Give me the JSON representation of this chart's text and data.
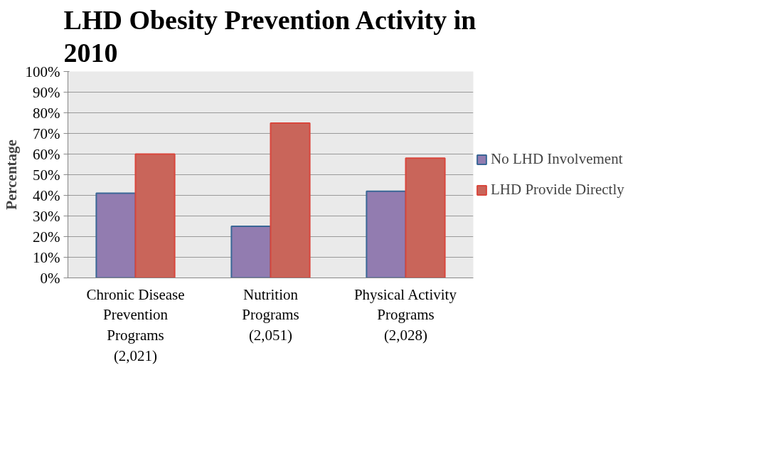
{
  "chart_data": {
    "type": "bar",
    "title": "LHD Obesity Prevention Activity in\n2010",
    "ylabel": "Percentage",
    "categories": [
      "Chronic Disease\nPrevention\nPrograms\n(2,021)",
      "Nutrition\nPrograms\n(2,051)",
      "Physical Activity\nPrograms\n(2,028)"
    ],
    "series": [
      {
        "name": "No LHD Involvement",
        "color": "#927cb0",
        "values": [
          41,
          25,
          42
        ]
      },
      {
        "name": "LHD Provide Directly",
        "color": "#c9655a",
        "values": [
          60,
          75,
          58
        ]
      }
    ],
    "ylim": [
      0,
      100
    ],
    "yticks": [
      {
        "value": 0,
        "label": "0%"
      },
      {
        "value": 10,
        "label": "10%"
      },
      {
        "value": 20,
        "label": "20%"
      },
      {
        "value": 30,
        "label": "30%"
      },
      {
        "value": 40,
        "label": "40%"
      },
      {
        "value": 50,
        "label": "50%"
      },
      {
        "value": 60,
        "label": "60%"
      },
      {
        "value": 70,
        "label": "70%"
      },
      {
        "value": 80,
        "label": "80%"
      },
      {
        "value": 90,
        "label": "90%"
      },
      {
        "value": 100,
        "label": "100%"
      }
    ],
    "grid": "y",
    "legend": "right"
  }
}
